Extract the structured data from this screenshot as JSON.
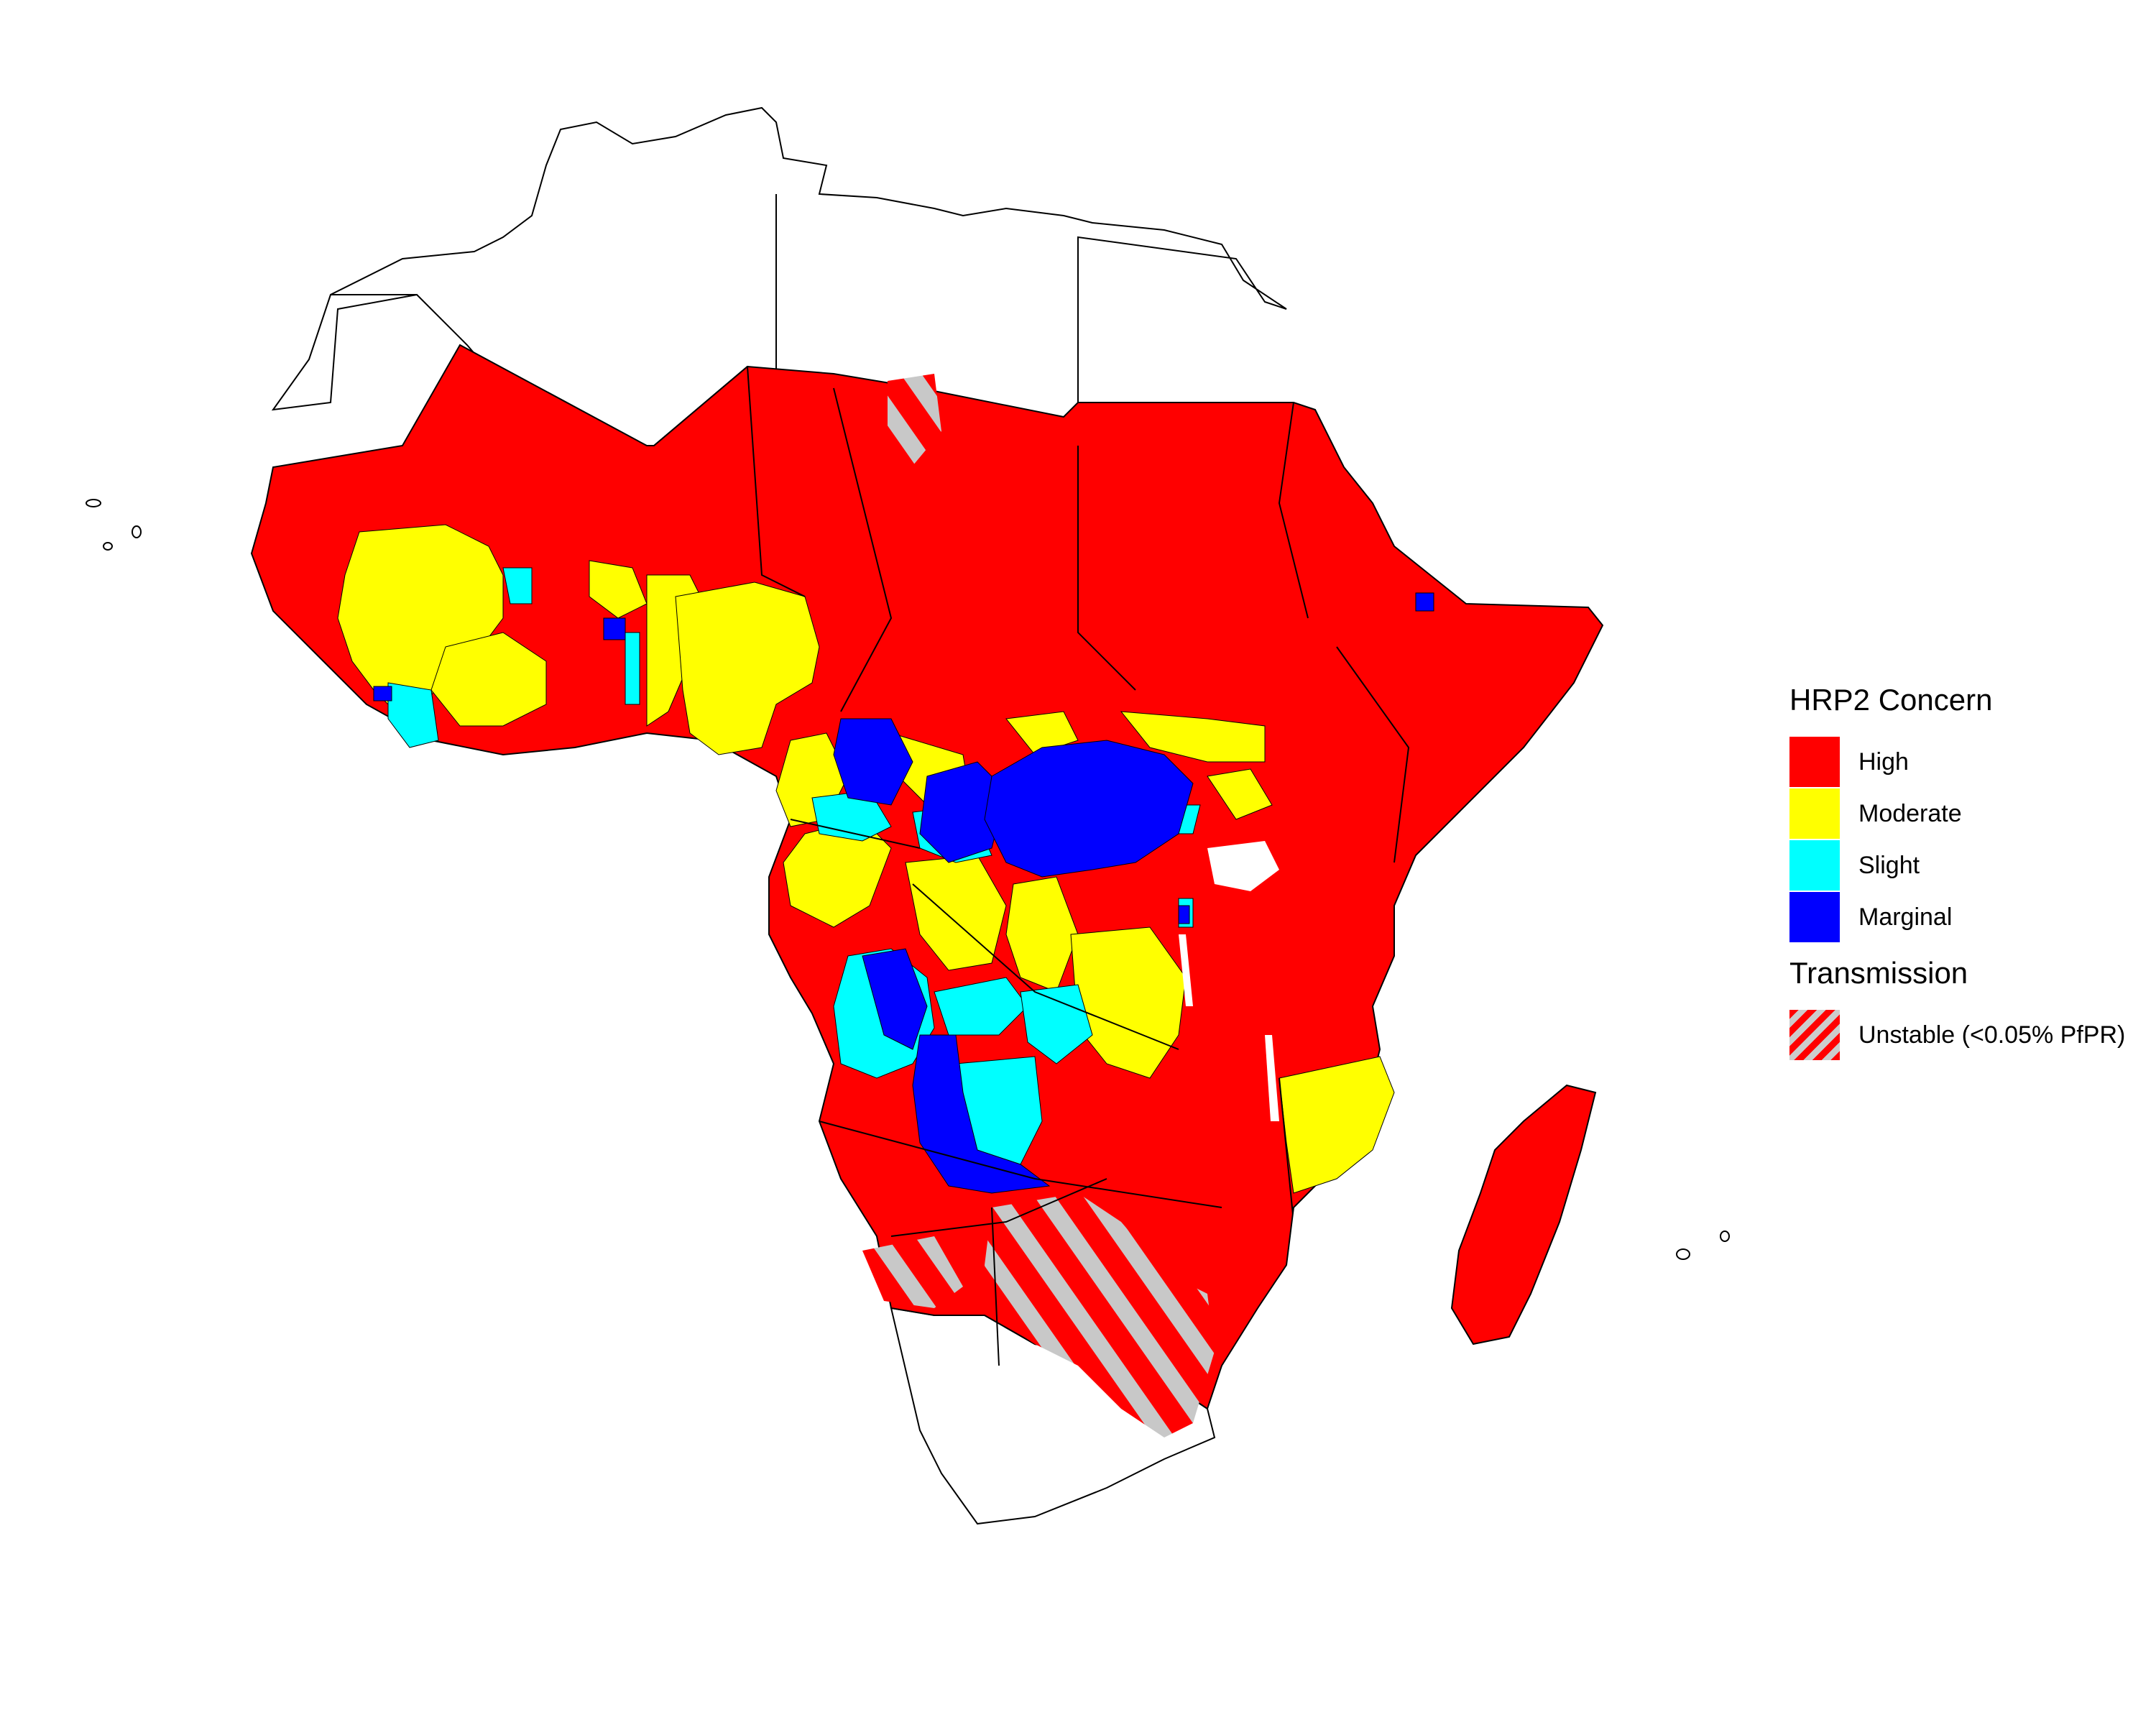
{
  "legend": {
    "concern_title": "HRP2 Concern",
    "concern_items": [
      {
        "label": "High",
        "color": "#ff0000"
      },
      {
        "label": "Moderate",
        "color": "#ffff00"
      },
      {
        "label": "Slight",
        "color": "#00ffff"
      },
      {
        "label": "Marginal",
        "color": "#0000ff"
      }
    ],
    "transmission_title": "Transmission",
    "transmission_item": {
      "label": "Unstable (<0.05% PfPR)",
      "color": "#ff0000",
      "hatch_color": "#cccccc"
    }
  },
  "colors": {
    "high": "#ff0000",
    "moderate": "#ffff00",
    "slight": "#00ffff",
    "marginal": "#0000ff",
    "no_data": "#ffffff",
    "border": "#000000"
  }
}
